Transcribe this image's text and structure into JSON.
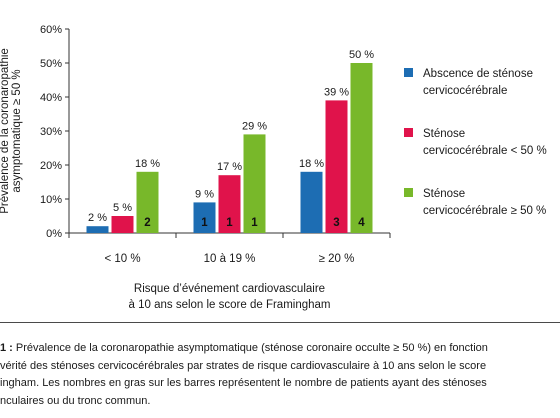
{
  "chart_data": {
    "type": "bar",
    "ylabel_lines": [
      "Prévalence de la coronaropathie",
      "asymptomatique ≥ 50 %"
    ],
    "xlabel_lines": [
      "Risque d’événement cardiovasculaire",
      "à 10 ans selon le score de Framingham"
    ],
    "yticks": [
      "0%",
      "10%",
      "20%",
      "30%",
      "40%",
      "50%",
      "60%"
    ],
    "ylim": [
      0,
      60
    ],
    "categories": [
      "< 10 %",
      "10 à 19 %",
      "≥ 20 %"
    ],
    "series": [
      {
        "name": "Abscence de sténose cervicocérébrale",
        "legend_lines": [
          "Abscence de sténose",
          "cervicocérébrale"
        ],
        "color": "#1d6db3",
        "values": [
          2,
          9,
          18
        ],
        "value_labels": [
          "2 %",
          "9 %",
          "18 %"
        ],
        "counts": [
          "",
          "1",
          ""
        ]
      },
      {
        "name": "Sténose cervicocérébrale < 50 %",
        "legend_lines": [
          "Sténose",
          "cervicocérébrale < 50 %"
        ],
        "color": "#e0134b",
        "values": [
          5,
          17,
          39
        ],
        "value_labels": [
          "5 %",
          "17 %",
          "39 %"
        ],
        "counts": [
          "",
          "1",
          "3"
        ]
      },
      {
        "name": "Sténose cervicocérébrale ≥ 50 %",
        "legend_lines": [
          "Sténose",
          "cervicocérébrale ≥ 50 %"
        ],
        "color": "#78b82a",
        "values": [
          18,
          29,
          50
        ],
        "value_labels": [
          "18 %",
          "29 %",
          "50 %"
        ],
        "counts": [
          "2",
          "1",
          "4"
        ]
      }
    ],
    "legend_position": "right",
    "grid": false
  },
  "caption": {
    "number": "1 :",
    "lines": [
      " Prévalence de la coronaropathie asymptomatique (sténose coronaire occulte ≥ 50 %) en fonction",
      "vérité des sténoses cervicocérébrales par strates de risque cardiovasculaire à 10 ans selon le score",
      "ingham. Les nombres en gras sur les barres représentent le nombre de patients ayant des sténoses",
      "nculaires ou du tronc commun."
    ]
  }
}
